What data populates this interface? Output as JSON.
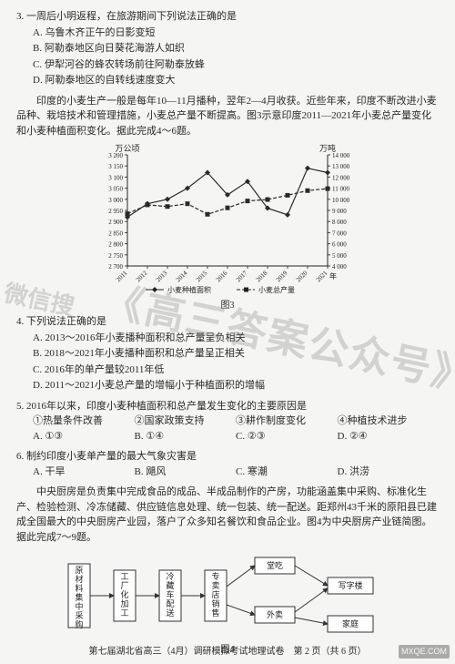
{
  "q3": {
    "stem": "3. 一周后小明返程，在旅游期间下列说法正确的是",
    "A": "A. 乌鲁木齐正午的日影变短",
    "B": "B. 阿勒泰地区向日葵花海游人如织",
    "C": "C. 伊犁河谷的蜂农转场前往阿勒泰放蜂",
    "D": "D. 阿勒泰地区的自转线速度变大"
  },
  "passage1": "印度的小麦生产一般是每年10—11月播种，翌年2—4月收获。近些年来，印度不断改进小麦品种、栽培技术和管理措施，小麦总产量不断提高。图3示意印度2011—2021年小麦总产量变化和小麦种植面积变化。据此完成4～6题。",
  "chart": {
    "type": "line",
    "left_label": "万公顷",
    "right_label": "万吨",
    "x_categories": [
      "2011",
      "2012",
      "2013",
      "2014",
      "2015",
      "2016",
      "2017",
      "2018",
      "2019",
      "2020",
      "2021"
    ],
    "x_suffix": "年",
    "y_left": {
      "min": 2700,
      "max": 3200,
      "ticks": [
        2700,
        2750,
        2800,
        2850,
        2900,
        2950,
        3000,
        3050,
        3100,
        3150,
        3200
      ]
    },
    "y_right": {
      "min": 4000,
      "max": 14000,
      "ticks": [
        4000,
        5000,
        6000,
        7000,
        8000,
        9000,
        10000,
        11000,
        12000,
        13000,
        14000
      ]
    },
    "series_area": {
      "name": "小麦种植面积",
      "marker": "diamond",
      "color": "#2a2a2a",
      "values": [
        2920,
        2980,
        3000,
        3050,
        3120,
        3020,
        3080,
        2960,
        2930,
        3140,
        3120
      ]
    },
    "series_yield": {
      "name": "小麦总产量",
      "marker": "square",
      "color": "#2a2a2a",
      "dash": "4 2",
      "values": [
        8700,
        9500,
        9350,
        9600,
        8650,
        9230,
        9850,
        9980,
        10360,
        10780,
        10960
      ]
    },
    "tick_color": "#444",
    "grid_color": "none",
    "background": "#f5f5f3",
    "caption": "图3"
  },
  "q4": {
    "stem": "4. 下列说法正确的是",
    "A": "A. 2013～2016年小麦播种面积和总产量呈负相关",
    "B": "B. 2018～2021年小麦播种面积和总产量呈正相关",
    "C": "C. 2016年的单产量较2011年低",
    "D": "D. 2011～2021小麦总产量的增幅小于种植面积的增幅"
  },
  "q5": {
    "stem": "5. 2016年以来，印度小麦种植面积和总产量发生变化的主要原因是",
    "opts": [
      "①热量条件改善",
      "②国家政策支持",
      "③耕作制度变化",
      "④种植技术进步"
    ],
    "A": "A. ①③",
    "B": "B. ①④",
    "C": "C. ②③",
    "D": "D. ②④"
  },
  "q6": {
    "stem": "6. 制约印度小麦单产量的最大气象灾害是",
    "A": "A. 干旱",
    "B": "B. 飓风",
    "C": "C. 寒潮",
    "D": "D. 洪涝"
  },
  "passage2": "中央厨房是负责集中完成食品的成品、半成品制作的产房，功能涵盖集中采购、标准化生产、检验检测、冷冻储藏、供应链信息处理、统一包装、统一配送。距郑州43千米的原阳县已建成全国最大的中央厨房产业园，落户了众多知名餐饮和食品企业。图4为中央厨房产业链简图。据此完成7～9题。",
  "flow": {
    "nodes": {
      "n1": "原\n材\n料\n集\n中\n采\n购",
      "n2": "工\n厂\n化\n加\n工",
      "n3": "冷\n藏\n车\n配\n送",
      "n4": "专\n卖\n店\n销\n售",
      "n5": "堂吃",
      "n6": "外卖",
      "n7": "写字楼",
      "n8": "家庭"
    },
    "caption": "图4",
    "border_color": "#333",
    "arrow_color": "#333"
  },
  "footer": "第七届湖北省高三（4月）调研模拟考试地理试卷　第 2 页（共 6 页）",
  "watermark1": "微信搜",
  "watermark2": "《高三答案公众号》",
  "site_wm": "MXQE.COM"
}
